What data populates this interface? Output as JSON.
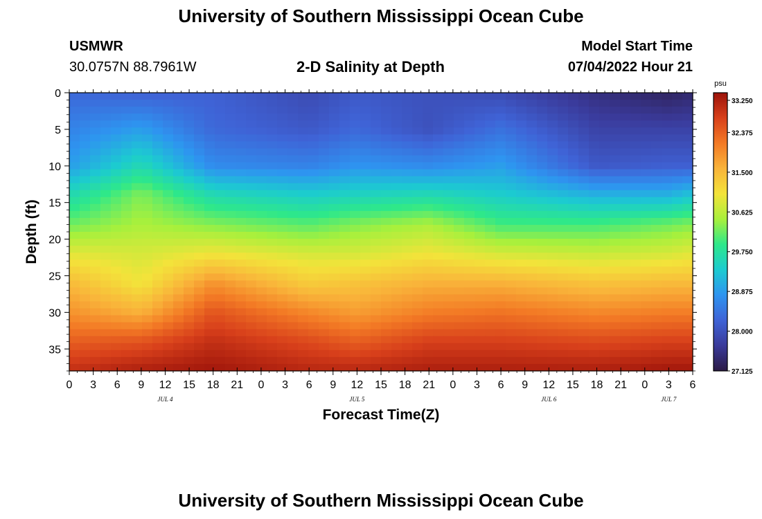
{
  "header": {
    "title": "University of Southern Mississippi Ocean Cube",
    "station_id": "USMWR",
    "station_coords": "30.0757N  88.7961W",
    "model_start_label": "Model Start Time",
    "model_start_value": "07/04/2022 Hour 21"
  },
  "footer": {
    "title": "University of Southern Mississippi Ocean Cube"
  },
  "chart_data": {
    "type": "heatmap",
    "title": "2-D Salinity at Depth",
    "xlabel": "Forecast Time(Z)",
    "ylabel": "Depth (ft)",
    "x_ticks": [
      "0",
      "3",
      "6",
      "9",
      "12",
      "15",
      "18",
      "21",
      "0",
      "3",
      "6",
      "9",
      "12",
      "15",
      "18",
      "21",
      "0",
      "3",
      "6",
      "9",
      "12",
      "15",
      "18",
      "21",
      "0",
      "3",
      "6"
    ],
    "x_range_hours": [
      0,
      78
    ],
    "date_labels": [
      {
        "label": "JUL 4",
        "hour": 12
      },
      {
        "label": "JUL 5",
        "hour": 36
      },
      {
        "label": "JUL 6",
        "hour": 60
      },
      {
        "label": "JUL 7",
        "hour": 75
      }
    ],
    "y_ticks": [
      0,
      5,
      10,
      15,
      20,
      25,
      30,
      35
    ],
    "y_range_ft": [
      0,
      38
    ],
    "colorbar": {
      "unit": "psu",
      "ticks": [
        "33.250",
        "32.375",
        "31.500",
        "30.625",
        "29.750",
        "28.875",
        "28.000",
        "27.125"
      ],
      "range": [
        27.125,
        33.25
      ],
      "colors": [
        "#2b1a45",
        "#3a3a9a",
        "#3f63d6",
        "#2e94f0",
        "#1ccbd0",
        "#2ee88a",
        "#a8f03c",
        "#f3e33a",
        "#f9b43a",
        "#f37a25",
        "#d8401b",
        "#9c130a"
      ]
    },
    "surface": {
      "ref_depths_ft": [
        0,
        5,
        10,
        14,
        18,
        22,
        26,
        30,
        34,
        38
      ],
      "ref_times_hours": [
        0,
        9,
        18,
        30,
        36,
        45,
        54,
        66,
        75,
        78
      ],
      "psu": [
        [
          28.3,
          28.2,
          28.2,
          27.9,
          28.1,
          28.0,
          27.9,
          27.5,
          27.3,
          27.4
        ],
        [
          28.6,
          28.9,
          28.3,
          28.1,
          28.3,
          28.0,
          28.4,
          27.8,
          27.8,
          27.8
        ],
        [
          28.9,
          29.6,
          28.7,
          28.6,
          28.8,
          28.7,
          28.9,
          28.1,
          28.2,
          28.2
        ],
        [
          29.6,
          30.3,
          29.6,
          29.4,
          29.5,
          29.6,
          29.4,
          29.1,
          29.1,
          29.3
        ],
        [
          30.2,
          30.5,
          30.3,
          30.1,
          30.3,
          30.5,
          30.0,
          30.0,
          30.2,
          30.3
        ],
        [
          30.9,
          30.8,
          31.0,
          30.8,
          30.8,
          31.0,
          30.8,
          30.7,
          30.8,
          30.9
        ],
        [
          31.5,
          31.0,
          31.9,
          31.3,
          31.4,
          31.6,
          31.6,
          31.4,
          31.5,
          31.5
        ],
        [
          31.9,
          31.6,
          32.5,
          32.0,
          31.8,
          32.1,
          32.2,
          32.0,
          32.1,
          32.1
        ],
        [
          32.4,
          32.5,
          32.9,
          32.6,
          32.4,
          32.7,
          32.7,
          32.6,
          32.7,
          32.7
        ],
        [
          32.9,
          33.1,
          33.2,
          33.0,
          33.0,
          33.1,
          33.1,
          33.1,
          33.2,
          33.2
        ]
      ]
    }
  }
}
